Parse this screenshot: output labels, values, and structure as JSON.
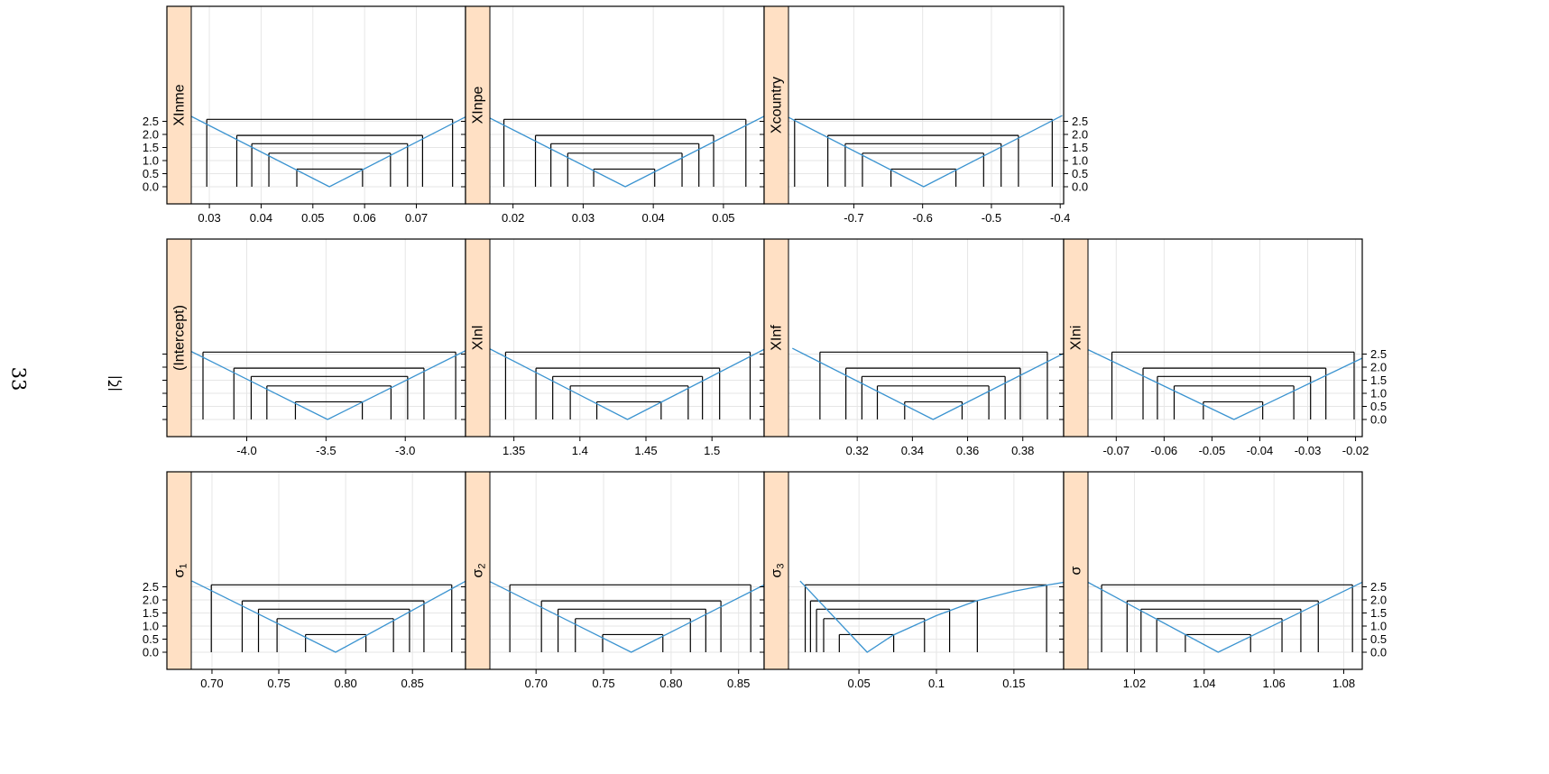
{
  "page_number": "33",
  "y_axis_label": "|ζ|",
  "chart_data": [
    {
      "type": "line",
      "strip_label": "XInme",
      "panel_title": "",
      "xlabel": "",
      "ylabel": "|ζ|",
      "x_ticks": [
        0.03,
        0.04,
        0.05,
        0.06,
        0.07
      ],
      "xlim": [
        0.0265,
        0.0795
      ],
      "y_ticks": [
        0.0,
        0.5,
        1.0,
        1.5,
        2.0,
        2.5
      ],
      "ylim": [
        -0.1,
        2.75
      ],
      "center": 0.0532,
      "curve": [
        [
          0.0262,
          2.72
        ],
        [
          0.0532,
          0.0
        ],
        [
          0.08,
          2.72
        ]
      ],
      "intervals": [
        {
          "level": 0.674,
          "lower": 0.0469,
          "upper": 0.0596
        },
        {
          "level": 1.282,
          "lower": 0.0415,
          "upper": 0.065
        },
        {
          "level": 1.645,
          "lower": 0.0382,
          "upper": 0.0683
        },
        {
          "level": 1.96,
          "lower": 0.0353,
          "upper": 0.0712
        },
        {
          "level": 2.576,
          "lower": 0.0295,
          "upper": 0.077
        }
      ]
    },
    {
      "type": "line",
      "strip_label": "XInpe",
      "panel_title": "",
      "xlabel": "",
      "ylabel": "|ζ|",
      "x_ticks": [
        0.02,
        0.03,
        0.04,
        0.05
      ],
      "xlim": [
        0.0167,
        0.0558
      ],
      "y_ticks": [
        0.0,
        0.5,
        1.0,
        1.5,
        2.0,
        2.5
      ],
      "ylim": [
        -0.1,
        2.75
      ],
      "center": 0.036,
      "curve": [
        [
          0.016,
          2.72
        ],
        [
          0.036,
          0.0
        ],
        [
          0.056,
          2.72
        ]
      ],
      "intervals": [
        {
          "level": 0.674,
          "lower": 0.0315,
          "upper": 0.0402
        },
        {
          "level": 1.282,
          "lower": 0.0278,
          "upper": 0.0441
        },
        {
          "level": 1.645,
          "lower": 0.0254,
          "upper": 0.0465
        },
        {
          "level": 1.96,
          "lower": 0.0232,
          "upper": 0.0486
        },
        {
          "level": 2.576,
          "lower": 0.0187,
          "upper": 0.0532
        }
      ]
    },
    {
      "type": "line",
      "strip_label": "Xcountry",
      "panel_title": "",
      "xlabel": "",
      "ylabel": "|ζ|",
      "x_ticks": [
        -0.7,
        -0.6,
        -0.5,
        -0.4
      ],
      "xlim": [
        -0.795,
        -0.395
      ],
      "y_ticks": [
        0.0,
        0.5,
        1.0,
        1.5,
        2.0,
        2.5
      ],
      "ylim": [
        -0.1,
        2.75
      ],
      "center": -0.5985,
      "curve": [
        [
          -0.8,
          2.72
        ],
        [
          -0.5985,
          0.0
        ],
        [
          -0.397,
          2.72
        ]
      ],
      "intervals": [
        {
          "level": 0.674,
          "lower": -0.646,
          "upper": -0.5516
        },
        {
          "level": 1.282,
          "lower": -0.6875,
          "upper": -0.5113
        },
        {
          "level": 1.645,
          "lower": -0.7125,
          "upper": -0.4859
        },
        {
          "level": 1.96,
          "lower": -0.7378,
          "upper": -0.4607
        },
        {
          "level": 2.576,
          "lower": -0.7861,
          "upper": -0.4116
        }
      ]
    },
    {
      "type": "line",
      "strip_label": "(Intercept)",
      "panel_title": "",
      "xlabel": "",
      "ylabel": "|ζ|",
      "x_ticks": [
        -4.0,
        -3.5,
        -3.0
      ],
      "xlim": [
        -4.35,
        -2.62
      ],
      "y_ticks": [
        0.0,
        0.5,
        1.0,
        1.5,
        2.0,
        2.5
      ],
      "ylim": [
        -0.1,
        2.75
      ],
      "center": -3.49,
      "curve": [
        [
          -4.39,
          2.72
        ],
        [
          -3.49,
          0.0
        ],
        [
          -2.59,
          2.72
        ]
      ],
      "intervals": [
        {
          "level": 0.674,
          "lower": -3.693,
          "upper": -3.271
        },
        {
          "level": 1.282,
          "lower": -3.873,
          "upper": -3.09
        },
        {
          "level": 1.645,
          "lower": -3.972,
          "upper": -2.985
        },
        {
          "level": 1.96,
          "lower": -4.081,
          "upper": -2.882
        },
        {
          "level": 2.576,
          "lower": -4.276,
          "upper": -2.682
        }
      ]
    },
    {
      "type": "line",
      "strip_label": "XInl",
      "panel_title": "",
      "xlabel": "",
      "ylabel": "|ζ|",
      "x_ticks": [
        1.35,
        1.4,
        1.45,
        1.5
      ],
      "xlim": [
        1.3318,
        1.5395
      ],
      "y_ticks": [
        0.0,
        0.5,
        1.0,
        1.5,
        2.0,
        2.5
      ],
      "ylim": [
        -0.1,
        2.75
      ],
      "center": 1.436,
      "curve": [
        [
          1.331,
          2.72
        ],
        [
          1.436,
          0.0
        ],
        [
          1.541,
          2.72
        ]
      ],
      "intervals": [
        {
          "level": 0.674,
          "lower": 1.4128,
          "upper": 1.4615
        },
        {
          "level": 1.282,
          "lower": 1.3927,
          "upper": 1.482
        },
        {
          "level": 1.645,
          "lower": 1.3794,
          "upper": 1.4928
        },
        {
          "level": 1.96,
          "lower": 1.3667,
          "upper": 1.5058
        },
        {
          "level": 2.576,
          "lower": 1.3437,
          "upper": 1.5289
        }
      ]
    },
    {
      "type": "line",
      "strip_label": "XInf",
      "panel_title": "",
      "xlabel": "",
      "ylabel": "|ζ|",
      "x_ticks": [
        0.32,
        0.34,
        0.36,
        0.38
      ],
      "xlim": [
        0.2951,
        0.3948
      ],
      "y_ticks": [
        0.0,
        0.5,
        1.0,
        1.5,
        2.0,
        2.5
      ],
      "ylim": [
        -0.1,
        2.75
      ],
      "center": 0.3475,
      "curve": [
        [
          0.2965,
          2.72
        ],
        [
          0.3475,
          0.0
        ],
        [
          0.3985,
          2.72
        ]
      ],
      "intervals": [
        {
          "level": 0.674,
          "lower": 0.3372,
          "upper": 0.358
        },
        {
          "level": 1.282,
          "lower": 0.3273,
          "upper": 0.3677
        },
        {
          "level": 1.645,
          "lower": 0.3217,
          "upper": 0.3736
        },
        {
          "level": 1.96,
          "lower": 0.3159,
          "upper": 0.3791
        },
        {
          "level": 2.576,
          "lower": 0.3065,
          "upper": 0.3889
        }
      ]
    },
    {
      "type": "line",
      "strip_label": "XIni",
      "panel_title": "",
      "xlabel": "",
      "ylabel": "|ζ|",
      "x_ticks": [
        -0.07,
        -0.06,
        -0.05,
        -0.04,
        -0.03,
        -0.02
      ],
      "xlim": [
        -0.0759,
        -0.0186
      ],
      "y_ticks": [
        0.0,
        0.5,
        1.0,
        1.5,
        2.0,
        2.5
      ],
      "ylim": [
        -0.1,
        2.75
      ],
      "center": -0.0454,
      "curve": [
        [
          -0.0765,
          2.72
        ],
        [
          -0.0454,
          0.0
        ],
        [
          -0.0143,
          2.72
        ]
      ],
      "intervals": [
        {
          "level": 0.674,
          "lower": -0.0518,
          "upper": -0.0394
        },
        {
          "level": 1.282,
          "lower": -0.0579,
          "upper": -0.0329
        },
        {
          "level": 1.645,
          "lower": -0.0614,
          "upper": -0.0294
        },
        {
          "level": 1.96,
          "lower": -0.0644,
          "upper": -0.0262
        },
        {
          "level": 2.576,
          "lower": -0.0709,
          "upper": -0.0203
        }
      ]
    },
    {
      "type": "line",
      "strip_label": "σ1",
      "panel_title": "",
      "xlabel": "",
      "ylabel": "|ζ|",
      "x_ticks": [
        0.7,
        0.75,
        0.8,
        0.85
      ],
      "xlim": [
        0.6845,
        0.8897
      ],
      "y_ticks": [
        0.0,
        0.5,
        1.0,
        1.5,
        2.0,
        2.5
      ],
      "ylim": [
        -0.1,
        2.75
      ],
      "center": 0.7925,
      "curve": [
        [
          0.685,
          2.72
        ],
        [
          0.7925,
          0.0
        ],
        [
          0.89,
          2.72
        ]
      ],
      "intervals": [
        {
          "level": 0.674,
          "lower": 0.77,
          "upper": 0.8152
        },
        {
          "level": 1.282,
          "lower": 0.7487,
          "upper": 0.8358
        },
        {
          "level": 1.645,
          "lower": 0.7348,
          "upper": 0.8478
        },
        {
          "level": 1.96,
          "lower": 0.7226,
          "upper": 0.8586
        },
        {
          "level": 2.576,
          "lower": 0.6995,
          "upper": 0.8794
        }
      ]
    },
    {
      "type": "line",
      "strip_label": "σ2",
      "panel_title": "",
      "xlabel": "",
      "ylabel": "|ζ|",
      "x_ticks": [
        0.7,
        0.75,
        0.8,
        0.85
      ],
      "xlim": [
        0.6658,
        0.8689
      ],
      "y_ticks": [
        0.0,
        0.5,
        1.0,
        1.5,
        2.0,
        2.5
      ],
      "ylim": [
        -0.1,
        2.75
      ],
      "center": 0.7705,
      "curve": [
        [
          0.665,
          2.72
        ],
        [
          0.7705,
          0.0
        ],
        [
          0.8745,
          2.72
        ]
      ],
      "intervals": [
        {
          "level": 0.674,
          "lower": 0.7493,
          "upper": 0.7939
        },
        {
          "level": 1.282,
          "lower": 0.7291,
          "upper": 0.8143
        },
        {
          "level": 1.645,
          "lower": 0.7163,
          "upper": 0.8257
        },
        {
          "level": 1.96,
          "lower": 0.704,
          "upper": 0.8369
        },
        {
          "level": 2.576,
          "lower": 0.6806,
          "upper": 0.859
        }
      ]
    },
    {
      "type": "line",
      "strip_label": "σ3",
      "panel_title": "",
      "xlabel": "",
      "ylabel": "|ζ|",
      "x_ticks": [
        0.05,
        0.1,
        0.15
      ],
      "xlim": [
        0.0045,
        0.1821
      ],
      "y_ticks": [
        0.0,
        0.5,
        1.0,
        1.5,
        2.0,
        2.5
      ],
      "ylim": [
        -0.1,
        2.75
      ],
      "center": 0.0553,
      "curve": [
        [
          0.012,
          2.72
        ],
        [
          0.0553,
          0.0
        ],
        [
          0.072,
          0.65
        ],
        [
          0.1,
          1.4
        ],
        [
          0.125,
          1.95
        ],
        [
          0.15,
          2.33
        ],
        [
          0.17,
          2.55
        ],
        [
          0.185,
          2.7
        ]
      ],
      "intervals": [
        {
          "level": 0.674,
          "lower": 0.0373,
          "upper": 0.0724
        },
        {
          "level": 1.282,
          "lower": 0.0272,
          "upper": 0.0923
        },
        {
          "level": 1.645,
          "lower": 0.0226,
          "upper": 0.1085
        },
        {
          "level": 1.96,
          "lower": 0.0187,
          "upper": 0.1264
        },
        {
          "level": 2.576,
          "lower": 0.0153,
          "upper": 0.1711
        }
      ]
    },
    {
      "type": "line",
      "strip_label": "σ",
      "panel_title": "",
      "xlabel": "",
      "ylabel": "|ζ|",
      "x_ticks": [
        1.02,
        1.04,
        1.06,
        1.08
      ],
      "xlim": [
        1.0067,
        1.0853
      ],
      "y_ticks": [
        0.0,
        0.5,
        1.0,
        1.5,
        2.0,
        2.5
      ],
      "ylim": [
        -0.1,
        2.75
      ],
      "center": 1.044,
      "curve": [
        [
          1.006,
          2.72
        ],
        [
          1.044,
          0.0
        ],
        [
          1.086,
          2.72
        ]
      ],
      "intervals": [
        {
          "level": 0.674,
          "lower": 1.0346,
          "upper": 1.0533
        },
        {
          "level": 1.282,
          "lower": 1.0264,
          "upper": 1.0623
        },
        {
          "level": 1.645,
          "lower": 1.0219,
          "upper": 1.0677
        },
        {
          "level": 1.96,
          "lower": 1.0179,
          "upper": 1.0727
        },
        {
          "level": 2.576,
          "lower": 1.0106,
          "upper": 1.0825
        }
      ]
    }
  ]
}
